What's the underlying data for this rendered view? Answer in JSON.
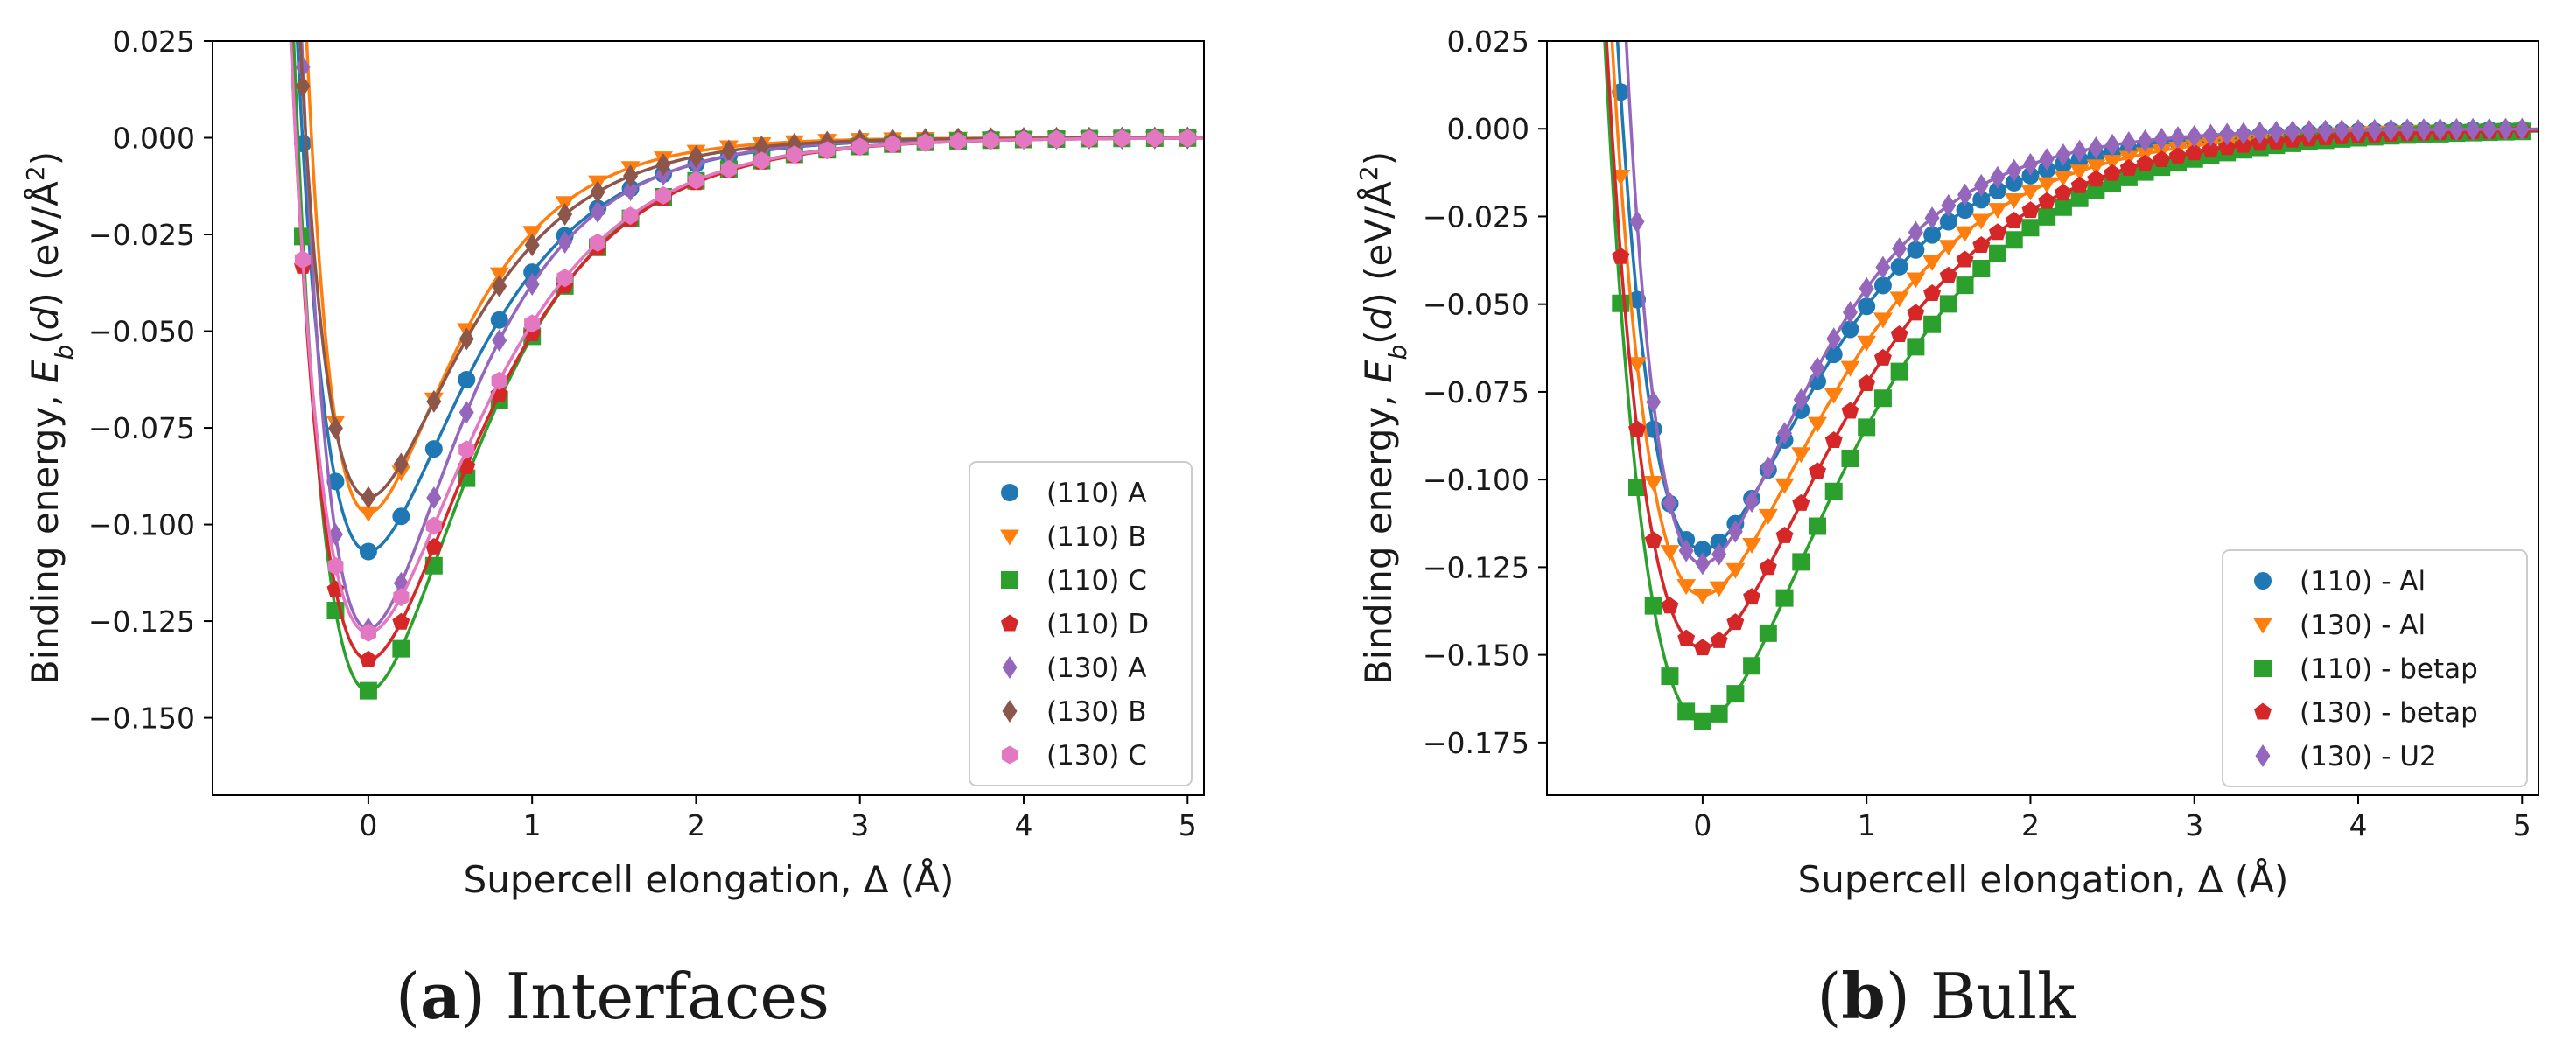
{
  "figure": {
    "panel_a_caption_letter": "a",
    "panel_a_caption_text": "Interfaces",
    "panel_b_caption_letter": "b",
    "panel_b_caption_text": "Bulk"
  },
  "chart_data": [
    {
      "type": "scatter",
      "panel": "a",
      "title": "(a) Interfaces",
      "xlabel": "Supercell elongation, Δ (Å)",
      "ylabel": "Binding energy, E_b(d) (eV/Å²)",
      "xlim": [
        -0.95,
        5.1
      ],
      "ylim": [
        -0.17,
        0.025
      ],
      "xticks": [
        "0",
        "1",
        "2",
        "3",
        "4",
        "5"
      ],
      "xtick_values": [
        0,
        1,
        2,
        3,
        4,
        5
      ],
      "yticks": [
        "0.025",
        "0.000",
        "−0.025",
        "−0.050",
        "−0.075",
        "−0.100",
        "−0.125",
        "−0.150"
      ],
      "ytick_values": [
        0.025,
        0.0,
        -0.025,
        -0.05,
        -0.075,
        -0.1,
        -0.125,
        -0.15
      ],
      "grid": false,
      "legend_position": "lower-right",
      "note": "markers sampled every 0.2 Å from -0.8 to 5.0; each series fitted with a solid curve",
      "series": [
        {
          "name": "(110) A",
          "color": "#1f77b4",
          "marker": "circle",
          "min_energy": -0.107,
          "min_x": 0.0,
          "width": 0.58
        },
        {
          "name": "(110) B",
          "color": "#ff7f0e",
          "marker": "triangle-down",
          "min_energy": -0.097,
          "min_x": 0.0,
          "width": 0.5
        },
        {
          "name": "(110) C",
          "color": "#2ca02c",
          "marker": "square",
          "min_energy": -0.143,
          "min_x": 0.0,
          "width": 0.62
        },
        {
          "name": "(110) D",
          "color": "#d62728",
          "marker": "pentagon",
          "min_energy": -0.135,
          "min_x": 0.0,
          "width": 0.64
        },
        {
          "name": "(130) A",
          "color": "#9467bd",
          "marker": "diamond",
          "min_energy": -0.127,
          "min_x": 0.0,
          "width": 0.55
        },
        {
          "name": "(130) B",
          "color": "#8c564b",
          "marker": "diamond",
          "min_energy": -0.093,
          "min_x": 0.0,
          "width": 0.55
        },
        {
          "name": "(130) C",
          "color": "#e377c2",
          "marker": "hexagon",
          "min_energy": -0.128,
          "min_x": 0.0,
          "width": 0.64
        }
      ]
    },
    {
      "type": "scatter",
      "panel": "b",
      "title": "(b) Bulk",
      "xlabel": "Supercell elongation, Δ (Å)",
      "ylabel": "Binding energy, E_b(d) (eV/Å²)",
      "xlim": [
        -0.95,
        5.1
      ],
      "ylim": [
        -0.19,
        0.025
      ],
      "xticks": [
        "0",
        "1",
        "2",
        "3",
        "4",
        "5"
      ],
      "xtick_values": [
        0,
        1,
        2,
        3,
        4,
        5
      ],
      "yticks": [
        "0.025",
        "0.000",
        "−0.025",
        "−0.050",
        "−0.075",
        "−0.100",
        "−0.125",
        "−0.150",
        "−0.175"
      ],
      "ytick_values": [
        0.025,
        0.0,
        -0.025,
        -0.05,
        -0.075,
        -0.1,
        -0.125,
        -0.15,
        -0.175
      ],
      "grid": false,
      "legend_position": "lower-right",
      "note": "markers sampled every 0.1 Å from -0.8 to 5.0; each series fitted with a solid curve",
      "series": [
        {
          "name": "(110) - Al",
          "color": "#1f77b4",
          "marker": "circle",
          "min_energy": -0.12,
          "min_x": 0.0,
          "width": 0.7
        },
        {
          "name": "(130) - Al",
          "color": "#ff7f0e",
          "marker": "triangle-down",
          "min_energy": -0.133,
          "min_x": 0.0,
          "width": 0.75
        },
        {
          "name": "(110) - betap",
          "color": "#2ca02c",
          "marker": "square",
          "min_energy": -0.169,
          "min_x": 0.0,
          "width": 0.82
        },
        {
          "name": "(130) - betap",
          "color": "#d62728",
          "marker": "pentagon",
          "min_energy": -0.148,
          "min_x": 0.0,
          "width": 0.8
        },
        {
          "name": "(130) - U2",
          "color": "#9467bd",
          "marker": "diamond",
          "min_energy": -0.124,
          "min_x": 0.0,
          "width": 0.63
        }
      ]
    }
  ]
}
